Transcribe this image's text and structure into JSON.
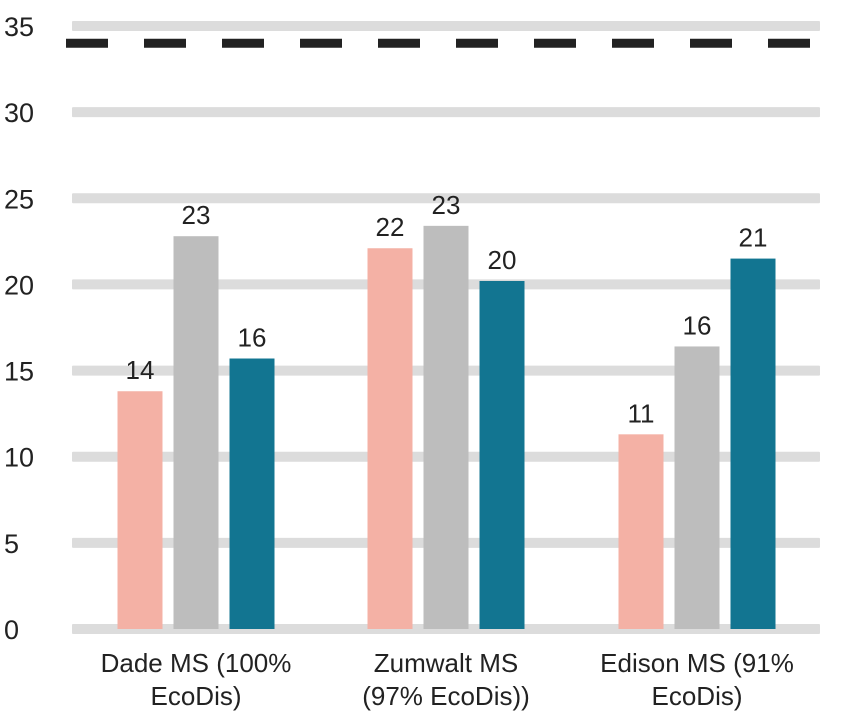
{
  "chart_data": {
    "type": "bar",
    "title": "",
    "xlabel": "",
    "ylabel": "",
    "ylim": [
      0,
      35
    ],
    "y_ticks": [
      "0",
      "5",
      "10",
      "15",
      "20",
      "25",
      "30",
      "35"
    ],
    "grid": true,
    "legend": "none",
    "categories": [
      [
        "Dade MS (100%",
        "EcoDis)"
      ],
      [
        "Zumwalt MS",
        "(97% EcoDis))"
      ],
      [
        "Edison MS (91%",
        "EcoDis)"
      ]
    ],
    "series": [
      {
        "color": "#f4b1a5",
        "values": [
          13.8,
          22.1,
          11.3
        ],
        "labels": [
          "14",
          "22",
          "11"
        ]
      },
      {
        "color": "#bdbdbd",
        "values": [
          22.8,
          23.4,
          16.4
        ],
        "labels": [
          "23",
          "23",
          "16"
        ]
      },
      {
        "color": "#127591",
        "values": [
          15.7,
          20.2,
          21.5
        ],
        "labels": [
          "16",
          "20",
          "21"
        ]
      }
    ],
    "reference_line": {
      "value": 34,
      "style": "dashed",
      "color": "#222222"
    },
    "colors": {
      "grid": "#dcdcdc",
      "text": "#222222"
    }
  }
}
